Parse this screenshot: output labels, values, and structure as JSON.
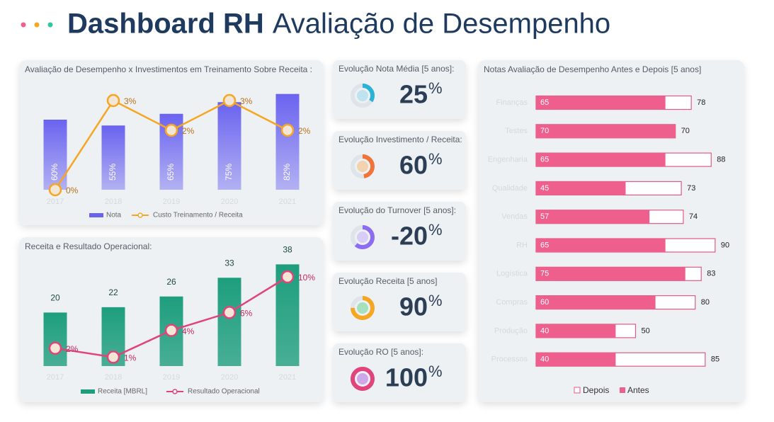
{
  "header": {
    "title_bold": "Dashboard RH",
    "title": "Avaliação de Desempenho"
  },
  "chart_data": [
    {
      "type": "combo",
      "title": "Avaliação de Desempenho x Investimentos em Treinamento Sobre Receita :",
      "categories": [
        "2017",
        "2018",
        "2019",
        "2020",
        "2021"
      ],
      "series": [
        {
          "name": "Nota",
          "type": "bar",
          "color": "#6a63f0",
          "values": [
            60,
            55,
            65,
            75,
            82
          ],
          "value_labels": [
            "60%",
            "55%",
            "65%",
            "75%",
            "82%"
          ]
        },
        {
          "name": "Custo Treinamento / Receita",
          "type": "line",
          "color": "#f5a623",
          "values": [
            0,
            3,
            2,
            3,
            2
          ],
          "value_labels": [
            "0%",
            "3%",
            "2%",
            "3%",
            "2%"
          ]
        }
      ]
    },
    {
      "type": "combo",
      "title": "Receita e Resultado Operacional:",
      "categories": [
        "2017",
        "2018",
        "2019",
        "2020",
        "2021"
      ],
      "series": [
        {
          "name": "Receita [MBRL]",
          "type": "bar",
          "color": "#1e9e7e",
          "values": [
            20,
            22,
            26,
            33,
            38
          ]
        },
        {
          "name": "Resultado Operacional",
          "type": "line",
          "color": "#e0447a",
          "values": [
            2,
            1,
            4,
            6,
            10
          ],
          "value_labels": [
            "2%",
            "1%",
            "4%",
            "6%",
            "10%"
          ]
        }
      ]
    },
    {
      "type": "bar",
      "orientation": "horizontal",
      "title": "Notas Avaliação de Desempenho Antes e Depois [5 anos]",
      "categories": [
        "Finanças",
        "Testes",
        "Engenharia",
        "Qualidade",
        "Vendas",
        "RH",
        "Logística",
        "Compras",
        "Produção",
        "Processos"
      ],
      "series": [
        {
          "name": "Depois",
          "color": "#e05a85",
          "values": [
            78,
            70,
            88,
            73,
            74,
            90,
            83,
            80,
            50,
            85
          ]
        },
        {
          "name": "Antes",
          "color": "#ef5f8d",
          "values": [
            65,
            70,
            65,
            45,
            57,
            65,
            75,
            60,
            40,
            40
          ]
        }
      ]
    }
  ],
  "kpis": [
    {
      "title": "Evolução Nota Média [5 anos]:",
      "value": 25,
      "unit": "%"
    },
    {
      "title": "Evolução Investimento / Receita:",
      "value": 60,
      "unit": "%"
    },
    {
      "title": "Evolução do Turnover [5 anos]:",
      "value": -20,
      "unit": "%"
    },
    {
      "title": "Evolução Receita [5 anos]",
      "value": 90,
      "unit": "%"
    },
    {
      "title": "Evolução RO [5 anos]:",
      "value": 100,
      "unit": "%"
    }
  ]
}
